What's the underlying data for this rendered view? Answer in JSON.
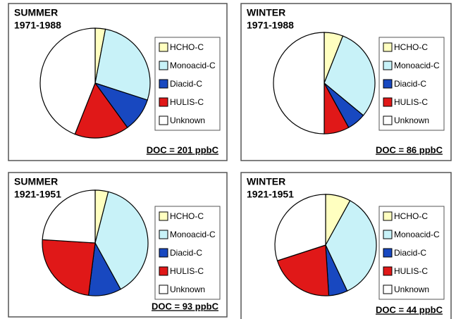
{
  "chart_data": [
    {
      "type": "pie",
      "title": "SUMMER",
      "subtitle": "1971-1988",
      "categories": [
        "HCHO-C",
        "Monoacid-C",
        "Diacid-C",
        "HULIS-C",
        "Unknown"
      ],
      "values": [
        3,
        27,
        10,
        16,
        44
      ],
      "colors": [
        "#ffffc0",
        "#c8f2f8",
        "#1848c0",
        "#e01818",
        "#ffffff"
      ],
      "annotation": "DOC = 201 ppbC"
    },
    {
      "type": "pie",
      "title": "WINTER",
      "subtitle": "1971-1988",
      "categories": [
        "HCHO-C",
        "Monoacid-C",
        "Diacid-C",
        "HULIS-C",
        "Unknown"
      ],
      "values": [
        6,
        30,
        6,
        8,
        50
      ],
      "colors": [
        "#ffffc0",
        "#c8f2f8",
        "#1848c0",
        "#e01818",
        "#ffffff"
      ],
      "annotation": "DOC = 86 ppbC"
    },
    {
      "type": "pie",
      "title": "SUMMER",
      "subtitle": "1921-1951",
      "categories": [
        "HCHO-C",
        "Monoacid-C",
        "Diacid-C",
        "HULIS-C",
        "Unknown"
      ],
      "values": [
        4,
        38,
        10,
        24,
        24
      ],
      "colors": [
        "#ffffc0",
        "#c8f2f8",
        "#1848c0",
        "#e01818",
        "#ffffff"
      ],
      "annotation": "DOC = 93 ppbC"
    },
    {
      "type": "pie",
      "title": "WINTER",
      "subtitle": "1921-1951",
      "categories": [
        "HCHO-C",
        "Monoacid-C",
        "Diacid-C",
        "HULIS-C",
        "Unknown"
      ],
      "values": [
        8,
        35,
        6,
        21,
        30
      ],
      "colors": [
        "#ffffc0",
        "#c8f2f8",
        "#1848c0",
        "#e01818",
        "#ffffff"
      ],
      "annotation": "DOC = 44 ppbC"
    }
  ]
}
